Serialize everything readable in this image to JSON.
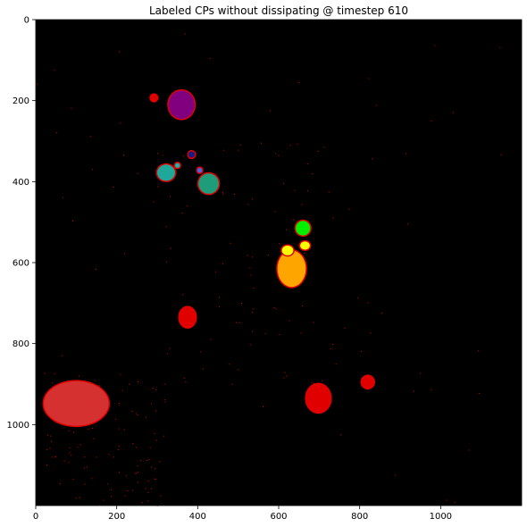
{
  "chart_data": {
    "type": "heatmap",
    "title": "Labeled CPs without dissipating @ timestep 610",
    "xlabel": "",
    "ylabel": "",
    "xlim": [
      0,
      1200
    ],
    "ylim": [
      1200,
      0
    ],
    "x_ticks": [
      0,
      200,
      400,
      600,
      800,
      1000
    ],
    "y_ticks": [
      0,
      200,
      400,
      600,
      800,
      1000
    ],
    "grid": false,
    "background_color": "#000000",
    "blobs": [
      {
        "label": "large-red-region",
        "cx": 100,
        "cy": 948,
        "rx": 80,
        "ry": 55,
        "color": "#d63131"
      },
      {
        "label": "red-blob-lower-center",
        "cx": 698,
        "cy": 935,
        "rx": 30,
        "ry": 35,
        "color": "#e00000"
      },
      {
        "label": "red-blob-small-right",
        "cx": 820,
        "cy": 895,
        "rx": 15,
        "ry": 15,
        "color": "#e00000"
      },
      {
        "label": "red-blob-middle-left",
        "cx": 375,
        "cy": 735,
        "rx": 20,
        "ry": 25,
        "color": "#e00000"
      },
      {
        "label": "orange-cluster",
        "cx": 632,
        "cy": 615,
        "rx": 35,
        "ry": 45,
        "color": "#ffa500"
      },
      {
        "label": "yellow-blob-a",
        "cx": 622,
        "cy": 570,
        "rx": 14,
        "ry": 12,
        "color": "#ffff00"
      },
      {
        "label": "yellow-blob-b",
        "cx": 665,
        "cy": 558,
        "rx": 12,
        "ry": 10,
        "color": "#ffff00"
      },
      {
        "label": "green-blob",
        "cx": 660,
        "cy": 515,
        "rx": 18,
        "ry": 18,
        "color": "#00ee00"
      },
      {
        "label": "teal-blob-left",
        "cx": 322,
        "cy": 378,
        "rx": 22,
        "ry": 20,
        "color": "#1fa89a"
      },
      {
        "label": "teal-blob-center",
        "cx": 427,
        "cy": 405,
        "rx": 25,
        "ry": 25,
        "color": "#1f9c7a"
      },
      {
        "label": "purple-blob",
        "cx": 360,
        "cy": 210,
        "rx": 32,
        "ry": 35,
        "color": "#800080"
      },
      {
        "label": "small-red-dot-top",
        "cx": 292,
        "cy": 193,
        "rx": 8,
        "ry": 8,
        "color": "#e00000"
      },
      {
        "label": "small-navy-dot",
        "cx": 385,
        "cy": 333,
        "rx": 8,
        "ry": 8,
        "color": "#1a1a80"
      },
      {
        "label": "small-blue-dot",
        "cx": 405,
        "cy": 372,
        "rx": 6,
        "ry": 6,
        "color": "#4169e1"
      },
      {
        "label": "small-teal-dot",
        "cx": 350,
        "cy": 360,
        "rx": 6,
        "ry": 6,
        "color": "#20b2aa"
      }
    ]
  }
}
